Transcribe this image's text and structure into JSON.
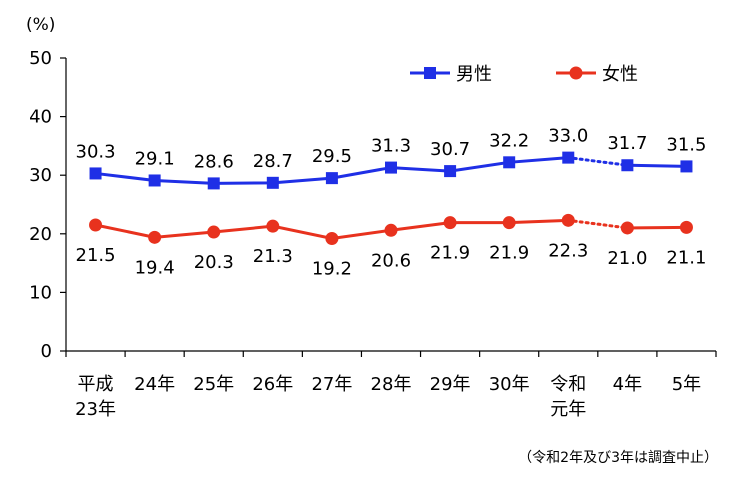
{
  "chart_data": {
    "type": "line",
    "unit_label": "(%)",
    "y_ticks": [
      "0",
      "10",
      "20",
      "30",
      "40",
      "50"
    ],
    "ylim": [
      0,
      50
    ],
    "grid": false,
    "categories": [
      [
        "平成",
        "23年"
      ],
      [
        "24年"
      ],
      [
        "25年"
      ],
      [
        "26年"
      ],
      [
        "27年"
      ],
      [
        "28年"
      ],
      [
        "29年"
      ],
      [
        "30年"
      ],
      [
        "令和",
        "元年"
      ],
      [
        "4年"
      ],
      [
        "5年"
      ]
    ],
    "series": [
      {
        "name": "男性",
        "color": "#1f2fe6",
        "marker": "square",
        "values": [
          30.3,
          29.1,
          28.6,
          28.7,
          29.5,
          31.3,
          30.7,
          32.2,
          33.0,
          31.7,
          31.5
        ],
        "labels": [
          "30.3",
          "29.1",
          "28.6",
          "28.7",
          "29.5",
          "31.3",
          "30.7",
          "32.2",
          "33.0",
          "31.7",
          "31.5"
        ],
        "label_position": "above"
      },
      {
        "name": "女性",
        "color": "#e8321e",
        "marker": "circle",
        "values": [
          21.5,
          19.4,
          20.3,
          21.3,
          19.2,
          20.6,
          21.9,
          21.9,
          22.3,
          21.0,
          21.1
        ],
        "labels": [
          "21.5",
          "19.4",
          "20.3",
          "21.3",
          "19.2",
          "20.6",
          "21.9",
          "21.9",
          "22.3",
          "21.0",
          "21.1"
        ],
        "label_position": "below"
      }
    ],
    "gap_after_index": 8,
    "legend_position": "top-right",
    "note": "（令和2年及び3年は調査中止）"
  }
}
